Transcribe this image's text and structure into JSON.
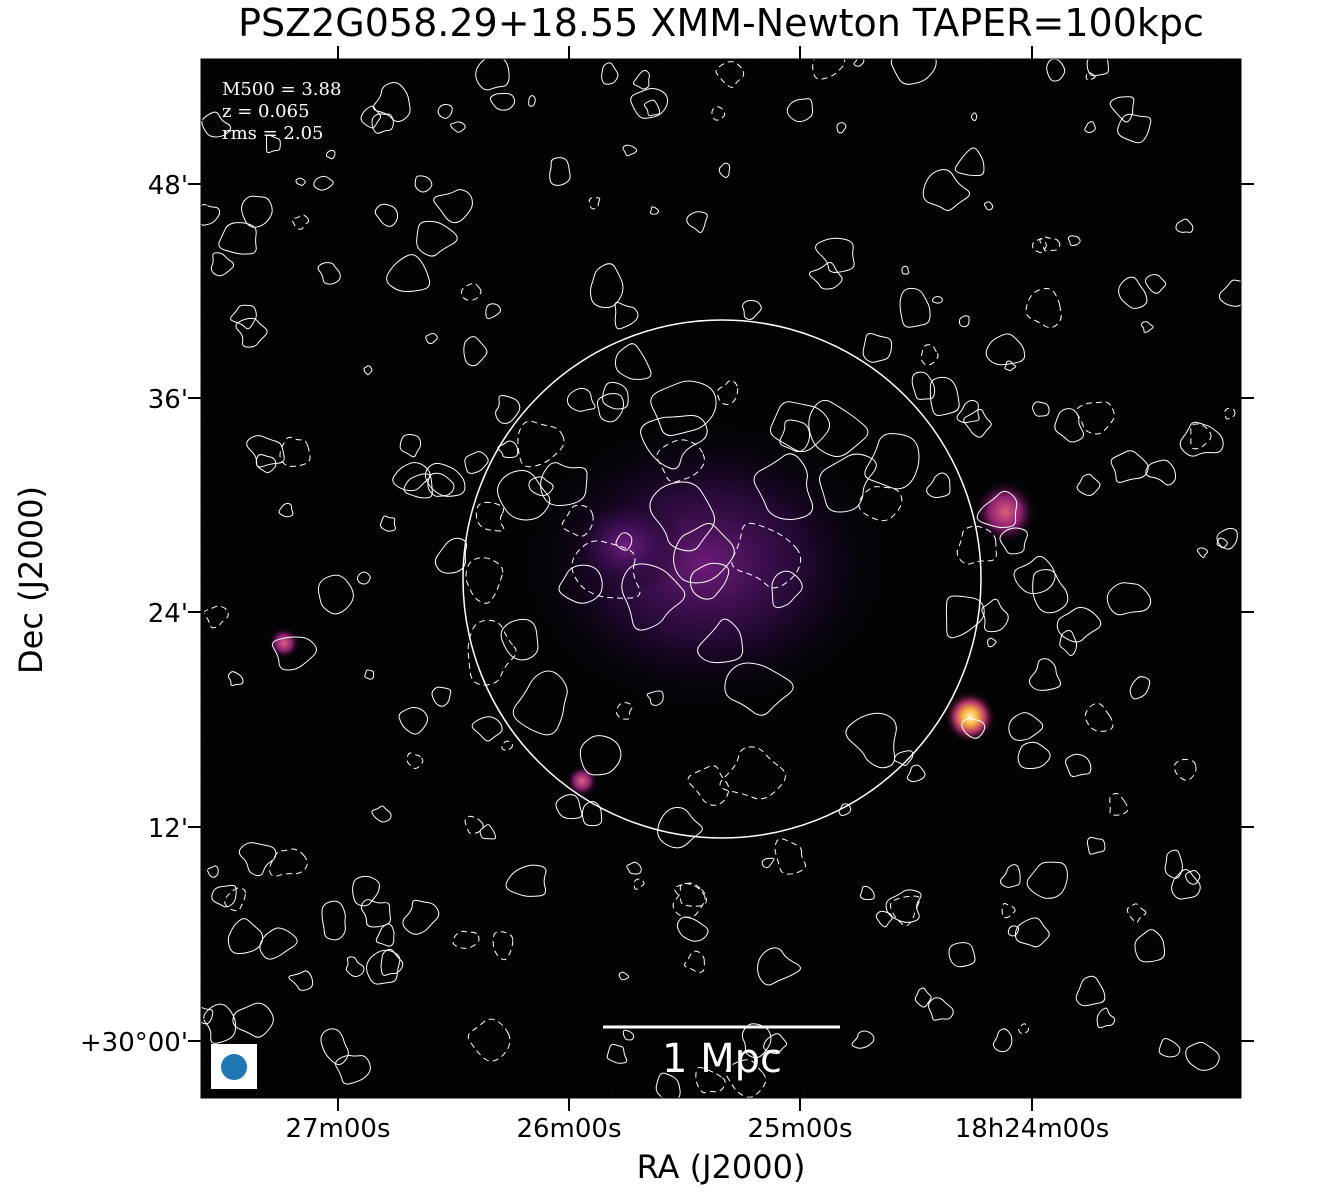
{
  "figure": {
    "title": "PSZ2G058.29+18.55 XMM-Newton TAPER=100kpc",
    "annotations": [
      "M500 = 3.88",
      "z = 0.065",
      "rms = 2.05"
    ],
    "scale_bar": "1 Mpc",
    "x_axis": {
      "label": "RA (J2000)",
      "tick_labels": [
        "27m00s",
        "26m00s",
        "25m00s",
        "18h24m00s"
      ]
    },
    "y_axis": {
      "label": "Dec (J2000)",
      "tick_labels": [
        "48'",
        "36'",
        "24'",
        "12'",
        "+30°00'"
      ]
    }
  }
}
